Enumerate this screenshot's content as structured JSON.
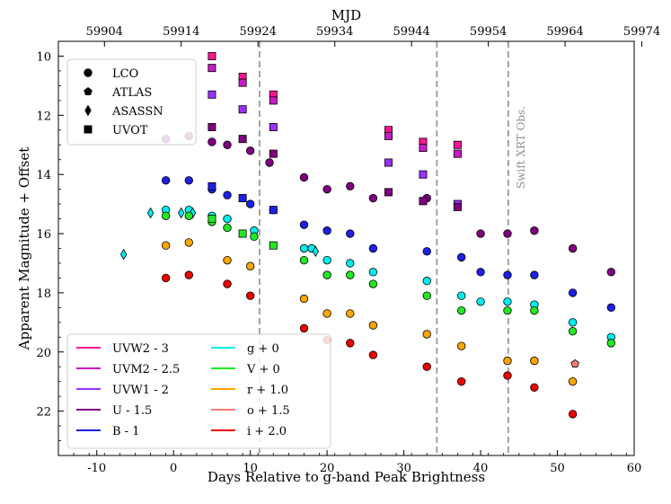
{
  "chart_data": {
    "type": "scatter",
    "title": "",
    "xlabel": "Days Relative to g-band Peak Brightness",
    "ylabel": "Apparent Magnitude + Offset",
    "top_xlabel": "MJD",
    "xlim": [
      -15,
      60
    ],
    "ylim": [
      23.5,
      9.5
    ],
    "y_inverted": true,
    "mjd_offset": 59913,
    "x_ticks": [
      -10,
      0,
      10,
      20,
      30,
      40,
      50,
      60
    ],
    "x_tick_labels": [
      "-10",
      "0",
      "10",
      "20",
      "30",
      "40",
      "50",
      "60"
    ],
    "y_ticks": [
      10,
      12,
      14,
      16,
      18,
      20,
      22
    ],
    "y_tick_labels": [
      "10",
      "12",
      "14",
      "16",
      "18",
      "20",
      "22"
    ],
    "top_ticks_mjd": [
      59904,
      59914,
      59924,
      59934,
      59944,
      59954,
      59964,
      59974
    ],
    "top_tick_labels": [
      "59904",
      "59914",
      "59924",
      "59934",
      "59944",
      "59954",
      "59964",
      "59974"
    ],
    "vertical_lines": [
      11.2,
      34.3,
      43.6
    ],
    "vline_annotation": "Swift XRT Obs.",
    "instrument_legend": [
      {
        "label": "LCO",
        "marker": "circle"
      },
      {
        "label": "ATLAS",
        "marker": "pentagon"
      },
      {
        "label": "ASASSN",
        "marker": "diamond"
      },
      {
        "label": "UVOT",
        "marker": "square"
      }
    ],
    "series": [
      {
        "name": "UVW2 - 3",
        "color": "#ff1493",
        "marker": "square",
        "x": [
          5,
          9,
          13,
          28,
          32.5,
          37
        ],
        "y": [
          10.0,
          10.7,
          11.3,
          12.5,
          12.9,
          13.0
        ]
      },
      {
        "name": "UVM2 - 2.5",
        "color": "#c71bc7",
        "marker": "square",
        "x": [
          5,
          9,
          13,
          28,
          32.5,
          37
        ],
        "y": [
          10.4,
          10.9,
          11.5,
          12.7,
          13.1,
          13.3
        ]
      },
      {
        "name": "UVW1 - 2",
        "color": "#9b30ff",
        "marker": "square",
        "x": [
          5,
          9,
          13,
          28,
          32.5,
          37
        ],
        "y": [
          11.3,
          11.8,
          12.4,
          13.6,
          14.0,
          15.0
        ]
      },
      {
        "name": "U - 1.5",
        "color": "#800080",
        "marker": "circle",
        "x": [
          -1,
          2,
          5,
          7,
          10,
          12.5,
          17,
          20,
          23,
          26,
          33,
          40,
          43.5,
          47,
          52,
          57
        ],
        "y": [
          12.8,
          12.7,
          12.9,
          13.0,
          13.2,
          13.6,
          14.1,
          14.5,
          14.4,
          14.8,
          14.8,
          16.0,
          16.0,
          15.9,
          16.5,
          17.3
        ]
      },
      {
        "name": "U - 1.5 (UVOT)",
        "color": "#800080",
        "marker": "square",
        "x": [
          5,
          9,
          13,
          28,
          32.5,
          37
        ],
        "y": [
          12.4,
          12.8,
          13.3,
          14.6,
          14.9,
          15.1
        ]
      },
      {
        "name": "B - 1",
        "color": "#1f1fe6",
        "marker": "circle",
        "x": [
          -1,
          2,
          5,
          7,
          10,
          13,
          17,
          20,
          23,
          26,
          33,
          37.5,
          40,
          43.5,
          47,
          52,
          57
        ],
        "y": [
          14.2,
          14.2,
          14.5,
          14.7,
          15.0,
          15.2,
          15.7,
          15.9,
          16.0,
          16.5,
          16.6,
          16.8,
          17.3,
          17.4,
          17.4,
          18.0,
          18.5
        ]
      },
      {
        "name": "B - 1 (UVOT)",
        "color": "#1f1fe6",
        "marker": "square",
        "x": [
          5,
          9,
          13
        ],
        "y": [
          14.4,
          14.8,
          15.2
        ]
      },
      {
        "name": "g + 0",
        "color": "#00eeee",
        "marker": "circle",
        "x": [
          -1,
          2,
          5,
          7,
          10.5,
          17,
          18,
          20,
          23,
          26,
          33,
          37.5,
          40,
          43.5,
          47,
          52,
          57
        ],
        "y": [
          15.2,
          15.2,
          15.4,
          15.5,
          15.9,
          16.5,
          16.5,
          16.9,
          17.0,
          17.3,
          17.6,
          18.1,
          18.3,
          18.3,
          18.4,
          19.0,
          19.5
        ]
      },
      {
        "name": "g + 0 (ASASSN)",
        "color": "#00eeee",
        "marker": "diamond",
        "x": [
          -6.5,
          -3,
          1,
          2.5,
          18.5
        ],
        "y": [
          16.7,
          15.3,
          15.3,
          15.3,
          16.6
        ]
      },
      {
        "name": "V + 0",
        "color": "#22e822",
        "marker": "circle",
        "x": [
          -1,
          2,
          5,
          7,
          10.5,
          17,
          20,
          23,
          26,
          33,
          37.5,
          43.5,
          47,
          52,
          57
        ],
        "y": [
          15.4,
          15.4,
          15.6,
          15.8,
          16.1,
          16.9,
          17.4,
          17.4,
          17.7,
          18.1,
          18.6,
          18.6,
          18.6,
          19.3,
          19.7
        ]
      },
      {
        "name": "V + 0 (UVOT)",
        "color": "#22e822",
        "marker": "square",
        "x": [
          5,
          9,
          13
        ],
        "y": [
          15.5,
          16.0,
          16.4
        ]
      },
      {
        "name": "r + 1.0",
        "color": "#ffa500",
        "marker": "circle",
        "x": [
          -1,
          2,
          7,
          10,
          17,
          20,
          23,
          26,
          33,
          37.5,
          43.5,
          47,
          52
        ],
        "y": [
          16.4,
          16.3,
          16.9,
          17.1,
          18.2,
          18.7,
          18.7,
          19.1,
          19.4,
          19.8,
          20.3,
          20.3,
          21.0
        ]
      },
      {
        "name": "o + 1.5",
        "color": "#f08070",
        "marker": "pentagon",
        "x": [
          52.3
        ],
        "y": [
          20.4
        ]
      },
      {
        "name": "i + 2.0",
        "color": "#ee0000",
        "marker": "circle",
        "x": [
          -1,
          2,
          7,
          10,
          17,
          20,
          23,
          26,
          33,
          37.5,
          43.5,
          47,
          52
        ],
        "y": [
          17.5,
          17.4,
          17.7,
          18.1,
          19.2,
          19.6,
          19.7,
          20.1,
          20.5,
          21.0,
          20.8,
          21.2,
          22.1
        ]
      }
    ],
    "band_legend": [
      {
        "label": "UVW2 - 3",
        "color": "#ff1493"
      },
      {
        "label": "UVM2 - 2.5",
        "color": "#c71bc7"
      },
      {
        "label": "UVW1 - 2",
        "color": "#9b30ff"
      },
      {
        "label": "U - 1.5",
        "color": "#800080"
      },
      {
        "label": "B - 1",
        "color": "#1f1fe6"
      },
      {
        "label": "g + 0",
        "color": "#00eeee"
      },
      {
        "label": "V + 0",
        "color": "#22e822"
      },
      {
        "label": "r + 1.0",
        "color": "#ffa500"
      },
      {
        "label": "o + 1.5",
        "color": "#f08070"
      },
      {
        "label": "i + 2.0",
        "color": "#ee0000"
      }
    ]
  }
}
